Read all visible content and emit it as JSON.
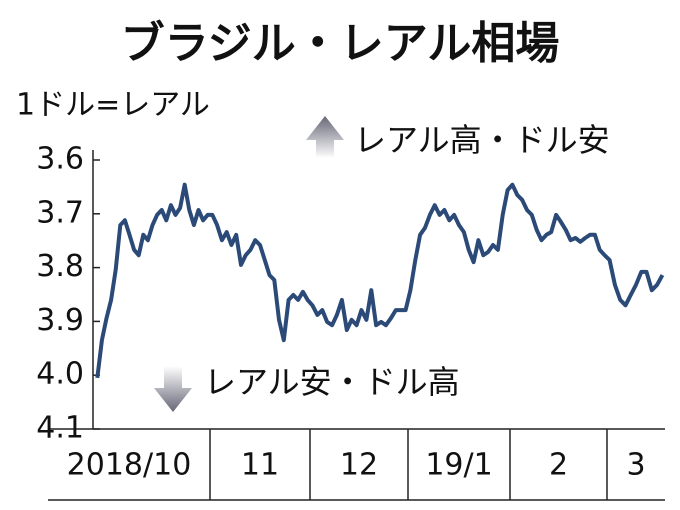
{
  "chart_data": {
    "type": "line",
    "title": "ブラジル・レアル相場",
    "unit_label": "1ドル=レアル",
    "annotations": [
      "レアル高・ドル安",
      "レアル安・ドル高"
    ],
    "categories": [
      "2018/10",
      "11",
      "12",
      "19/1",
      "2",
      "3"
    ],
    "values": [
      [
        4.005,
        3.935,
        3.894,
        3.86,
        3.804,
        3.721,
        3.712,
        3.739,
        3.767,
        3.777,
        3.739,
        3.749,
        3.721,
        3.702,
        3.693,
        3.712,
        3.684,
        3.702,
        3.689,
        3.646,
        3.693,
        3.721,
        3.693,
        3.712,
        3.702
      ],
      [
        3.702,
        3.721,
        3.749,
        3.734,
        3.758,
        3.739,
        3.795,
        3.777,
        3.767,
        3.749,
        3.758,
        3.786,
        3.814,
        3.823,
        3.897,
        3.935,
        3.86,
        3.851,
        3.86,
        3.845,
        3.86
      ],
      [
        3.87,
        3.888,
        3.879,
        3.901,
        3.907,
        3.888,
        3.86,
        3.916,
        3.897,
        3.907,
        3.879,
        3.897,
        3.842,
        3.907,
        3.901,
        3.907,
        3.894,
        3.879,
        3.879,
        3.879
      ],
      [
        3.842,
        3.786,
        3.739,
        3.726,
        3.702,
        3.684,
        3.702,
        3.693,
        3.712,
        3.702,
        3.721,
        3.734,
        3.767,
        3.79,
        3.749,
        3.777,
        3.771,
        3.758,
        3.767,
        3.702,
        3.656
      ],
      [
        3.646,
        3.665,
        3.674,
        3.693,
        3.702,
        3.73,
        3.749,
        3.739,
        3.734,
        3.702,
        3.715,
        3.73,
        3.749,
        3.745,
        3.752,
        3.745,
        3.739,
        3.739,
        3.767,
        3.777
      ],
      [
        3.786,
        3.832,
        3.86,
        3.87,
        3.851,
        3.832,
        3.808,
        3.808,
        3.842,
        3.832,
        3.814
      ]
    ],
    "color": "#2b4a78",
    "ylim": [
      4.1,
      3.6
    ],
    "yticks": [
      3.6,
      3.7,
      3.8,
      3.9,
      {
        "value": 4,
        "label": "4.0"
      },
      4.1
    ]
  }
}
